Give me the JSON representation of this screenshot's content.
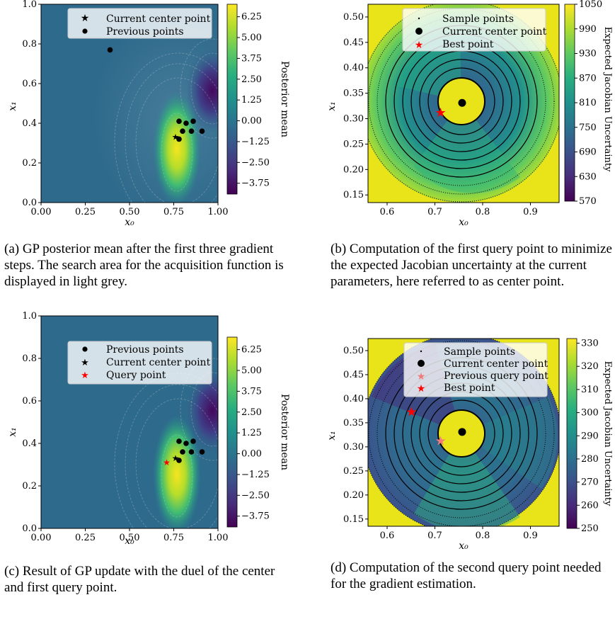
{
  "panels": [
    {
      "id": "a",
      "caption": "(a) GP posterior mean after the first three gradient steps. The search area for the acquisition function is displayed in light grey.",
      "xlabel": "x₀",
      "ylabel": "x₁",
      "cbar_label": "Posterior mean",
      "xticks": [
        "0.00",
        "0.25",
        "0.50",
        "0.75",
        "1.00"
      ],
      "yticks": [
        "0.0",
        "0.2",
        "0.4",
        "0.6",
        "0.8",
        "1.0"
      ],
      "cbar_ticks": [
        "6.25",
        "5.00",
        "3.75",
        "2.50",
        "1.25",
        "0.00",
        "−1.25",
        "−2.50",
        "−3.75"
      ],
      "legend": [
        "Current center point",
        "Previous points"
      ]
    },
    {
      "id": "b",
      "caption": "(b) Computation of the first query point to minimize the expected Jacobian uncertainty at the current parameters, here referred to as center point.",
      "xlabel": "x₀",
      "ylabel": "x₁",
      "cbar_label": "Expected Jacobian Uncertainty",
      "xticks": [
        "0.6",
        "0.7",
        "0.8",
        "0.9"
      ],
      "yticks": [
        "0.50",
        "0.45",
        "0.40",
        "0.35",
        "0.30",
        "0.25",
        "0.20",
        "0.15"
      ],
      "cbar_ticks": [
        "1050",
        "990",
        "930",
        "870",
        "810",
        "750",
        "690",
        "630",
        "570"
      ],
      "legend": [
        "Sample points",
        "Current center point",
        "Best point"
      ]
    },
    {
      "id": "c",
      "caption": "(c) Result of GP update with the duel of the center and first query point.",
      "xlabel": "x₀",
      "ylabel": "x₁",
      "cbar_label": "Posterior mean",
      "xticks": [
        "0.00",
        "0.25",
        "0.50",
        "0.75",
        "1.00"
      ],
      "yticks": [
        "0.0",
        "0.2",
        "0.4",
        "0.6",
        "0.8",
        "1.0"
      ],
      "cbar_ticks": [
        "6.25",
        "5.00",
        "3.75",
        "2.50",
        "1.25",
        "0.00",
        "−1.25",
        "−2.50",
        "−3.75"
      ],
      "legend": [
        "Previous points",
        "Current center point",
        "Query point"
      ]
    },
    {
      "id": "d",
      "caption": "(d) Computation of the second query point needed for the gradient estimation.",
      "xlabel": "x₀",
      "ylabel": "x₁",
      "cbar_label": "Expected Jacobian Uncertainty",
      "xticks": [
        "0.6",
        "0.7",
        "0.8",
        "0.9"
      ],
      "yticks": [
        "0.50",
        "0.45",
        "0.40",
        "0.35",
        "0.30",
        "0.25",
        "0.20",
        "0.15"
      ],
      "cbar_ticks": [
        "330",
        "320",
        "310",
        "300",
        "290",
        "280",
        "270",
        "260",
        "250"
      ],
      "legend": [
        "Sample points",
        "Current center point",
        "Previous query point",
        "Best point"
      ]
    }
  ],
  "chart_data": [
    {
      "type": "heatmap",
      "panel": "a",
      "xlim": [
        0,
        1
      ],
      "ylim": [
        0,
        1
      ],
      "colorbar_range": [
        -4.4,
        7.0
      ],
      "series": [
        {
          "name": "Current center point",
          "marker": "star",
          "points": [
            [
              0.76,
              0.33
            ]
          ]
        },
        {
          "name": "Previous points",
          "marker": "circle",
          "points": [
            [
              0.39,
              0.77
            ],
            [
              0.78,
              0.41
            ],
            [
              0.82,
              0.4
            ],
            [
              0.86,
              0.41
            ],
            [
              0.8,
              0.36
            ],
            [
              0.85,
              0.36
            ],
            [
              0.91,
              0.36
            ],
            [
              0.78,
              0.32
            ]
          ]
        }
      ]
    },
    {
      "type": "heatmap",
      "panel": "b",
      "xlim": [
        0.56,
        0.96
      ],
      "ylim": [
        0.135,
        0.525
      ],
      "colorbar_range": [
        570,
        1050
      ],
      "series": [
        {
          "name": "Current center point",
          "marker": "circle",
          "points": [
            [
              0.757,
              0.331
            ]
          ]
        },
        {
          "name": "Best point",
          "marker": "star",
          "points": [
            [
              0.712,
              0.312
            ]
          ]
        }
      ]
    },
    {
      "type": "heatmap",
      "panel": "c",
      "xlim": [
        0,
        1
      ],
      "ylim": [
        0,
        1
      ],
      "colorbar_range": [
        -4.4,
        7.0
      ],
      "series": [
        {
          "name": "Previous points",
          "marker": "circle",
          "points": [
            [
              0.78,
              0.41
            ],
            [
              0.82,
              0.4
            ],
            [
              0.86,
              0.41
            ],
            [
              0.8,
              0.36
            ],
            [
              0.85,
              0.36
            ],
            [
              0.91,
              0.36
            ],
            [
              0.78,
              0.32
            ]
          ]
        },
        {
          "name": "Current center point",
          "marker": "star",
          "points": [
            [
              0.76,
              0.33
            ]
          ]
        },
        {
          "name": "Query point",
          "marker": "star",
          "points": [
            [
              0.71,
              0.31
            ]
          ]
        }
      ]
    },
    {
      "type": "heatmap",
      "panel": "d",
      "xlim": [
        0.56,
        0.96
      ],
      "ylim": [
        0.135,
        0.525
      ],
      "colorbar_range": [
        250,
        332
      ],
      "series": [
        {
          "name": "Current center point",
          "marker": "circle",
          "points": [
            [
              0.757,
              0.331
            ]
          ]
        },
        {
          "name": "Previous query point",
          "marker": "star",
          "points": [
            [
              0.712,
              0.312
            ]
          ]
        },
        {
          "name": "Best point",
          "marker": "star",
          "points": [
            [
              0.651,
              0.373
            ]
          ]
        }
      ]
    }
  ],
  "colors": {
    "viridis": [
      "#440154",
      "#472d7b",
      "#3b528b",
      "#2c728e",
      "#21918c",
      "#28ae80",
      "#5ec962",
      "#addc30",
      "#fde725"
    ],
    "background_a": "#2e6a8c",
    "best_point": "#ff0000",
    "previous_query": "#f07a7a",
    "disk_fill": "#e8e419"
  }
}
